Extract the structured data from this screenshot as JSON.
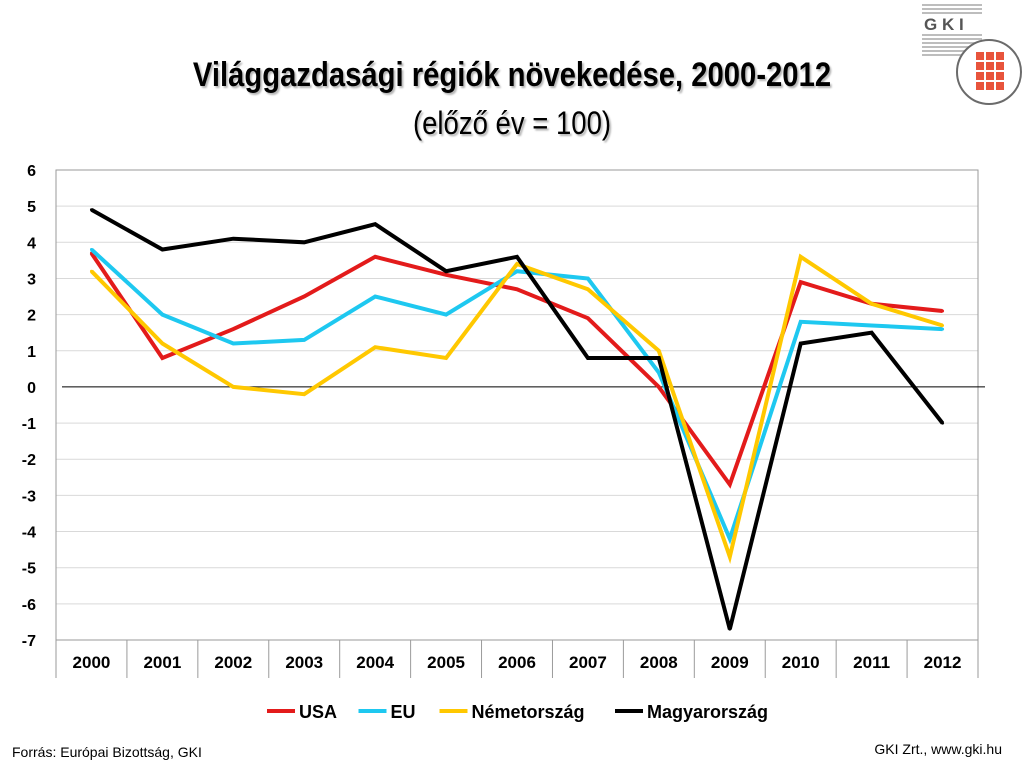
{
  "slide": {
    "title": "Világgazdasági régiók növekedése, 2000-2012",
    "subtitle": "(előző év = 100)",
    "source": "Forrás: Európai Bizottság, GKI",
    "credit": "GKI Zrt., www.gki.hu",
    "logo_text": "G K I"
  },
  "chart_data": {
    "type": "line",
    "categories": [
      "2000",
      "2001",
      "2002",
      "2003",
      "2004",
      "2005",
      "2006",
      "2007",
      "2008",
      "2009",
      "2010",
      "2011",
      "2012"
    ],
    "ylim": [
      -7,
      6
    ],
    "yticks": [
      6,
      5,
      4,
      3,
      2,
      1,
      0,
      -1,
      -2,
      -3,
      -4,
      -5,
      -6,
      -7
    ],
    "grid": true,
    "legend_position": "bottom",
    "series": [
      {
        "name": "USA",
        "color": "#e31b1b",
        "values": [
          3.7,
          0.8,
          1.6,
          2.5,
          3.6,
          3.1,
          2.7,
          1.9,
          0.0,
          -2.7,
          2.9,
          2.3,
          2.1
        ]
      },
      {
        "name": "EU",
        "color": "#1ec8f0",
        "values": [
          3.8,
          2.0,
          1.2,
          1.3,
          2.5,
          2.0,
          3.2,
          3.0,
          0.4,
          -4.2,
          1.8,
          1.7,
          1.6
        ]
      },
      {
        "name": "Németország",
        "color": "#ffc800",
        "values": [
          3.2,
          1.2,
          0.0,
          -0.2,
          1.1,
          0.8,
          3.4,
          2.7,
          1.0,
          -4.7,
          3.6,
          2.3,
          1.7
        ]
      },
      {
        "name": "Magyarország",
        "color": "#000000",
        "values": [
          4.9,
          3.8,
          4.1,
          4.0,
          4.5,
          3.2,
          3.6,
          0.8,
          0.8,
          -6.7,
          1.2,
          1.5,
          -1.0
        ]
      }
    ]
  }
}
